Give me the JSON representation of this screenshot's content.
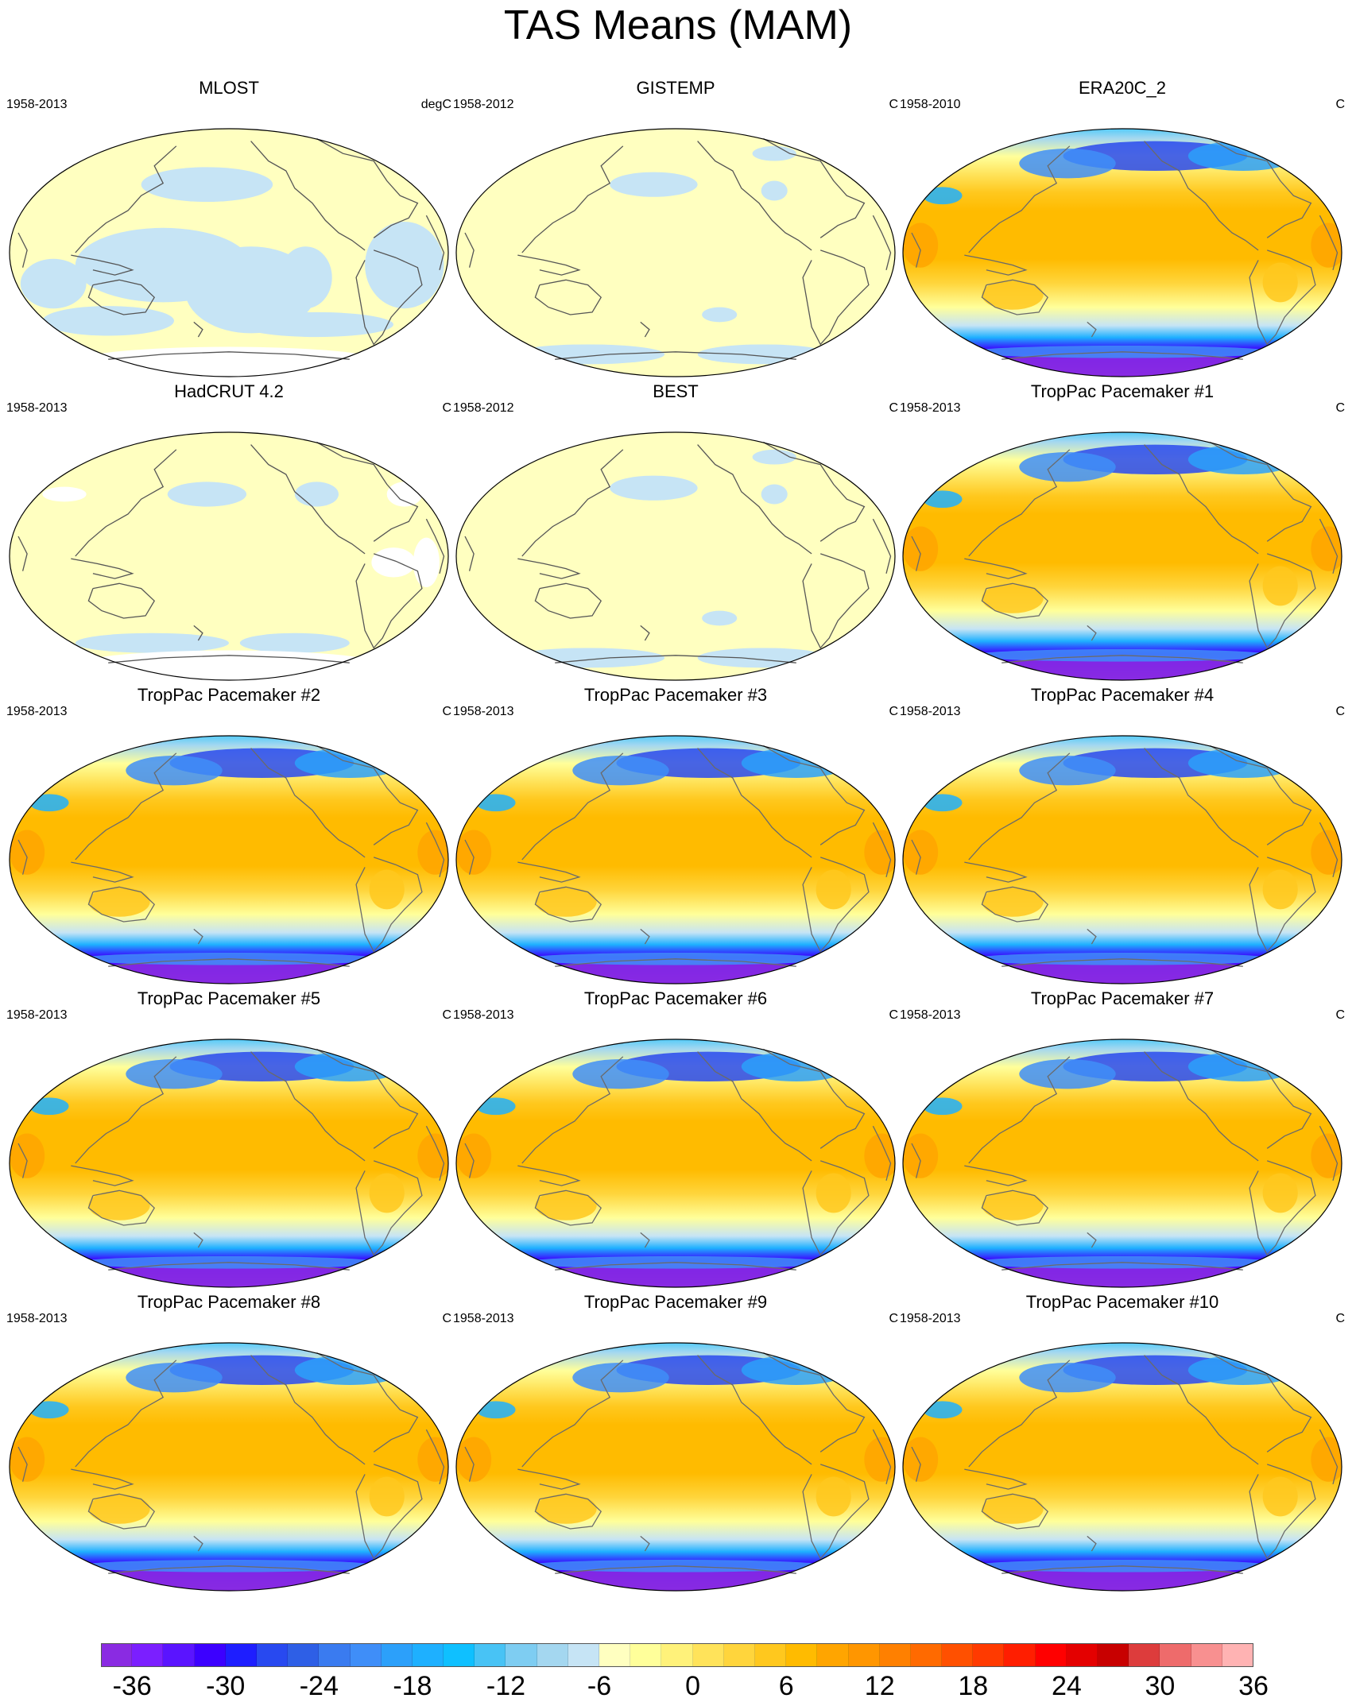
{
  "title": "TAS Means (MAM)",
  "panels": [
    {
      "title": "MLOST",
      "period": "1958-2013",
      "unit": "degC",
      "style": "obs_sparse"
    },
    {
      "title": "GISTEMP",
      "period": "1958-2012",
      "unit": "C",
      "style": "obs"
    },
    {
      "title": "ERA20C_2",
      "period": "1958-2010",
      "unit": "C",
      "style": "model"
    },
    {
      "title": "HadCRUT 4.2",
      "period": "1958-2013",
      "unit": "C",
      "style": "obs_gaps"
    },
    {
      "title": "BEST",
      "period": "1958-2012",
      "unit": "C",
      "style": "obs"
    },
    {
      "title": "TropPac Pacemaker #1",
      "period": "1958-2013",
      "unit": "C",
      "style": "model"
    },
    {
      "title": "TropPac Pacemaker #2",
      "period": "1958-2013",
      "unit": "C",
      "style": "model"
    },
    {
      "title": "TropPac Pacemaker #3",
      "period": "1958-2013",
      "unit": "C",
      "style": "model"
    },
    {
      "title": "TropPac Pacemaker #4",
      "period": "1958-2013",
      "unit": "C",
      "style": "model"
    },
    {
      "title": "TropPac Pacemaker #5",
      "period": "1958-2013",
      "unit": "C",
      "style": "model"
    },
    {
      "title": "TropPac Pacemaker #6",
      "period": "1958-2013",
      "unit": "C",
      "style": "model"
    },
    {
      "title": "TropPac Pacemaker #7",
      "period": "1958-2013",
      "unit": "C",
      "style": "model"
    },
    {
      "title": "TropPac Pacemaker #8",
      "period": "1958-2013",
      "unit": "C",
      "style": "model"
    },
    {
      "title": "TropPac Pacemaker #9",
      "period": "1958-2013",
      "unit": "C",
      "style": "model"
    },
    {
      "title": "TropPac Pacemaker #10",
      "period": "1958-2013",
      "unit": "C",
      "style": "model"
    }
  ],
  "colorbar": {
    "labels": [
      "-36",
      "-30",
      "-24",
      "-18",
      "-12",
      "-6",
      "0",
      "6",
      "12",
      "18",
      "24",
      "30",
      "36"
    ],
    "colors": [
      "#8a2be2",
      "#7b1fff",
      "#5a14ff",
      "#3c00ff",
      "#1e1eff",
      "#2849f0",
      "#2e5fe6",
      "#3a7bf0",
      "#3f8ef8",
      "#2ca0fa",
      "#1eb0ff",
      "#0fc0ff",
      "#48c3f5",
      "#7ecdf2",
      "#a4d7f0",
      "#c6e4f5",
      "#ffffc0",
      "#ffff9a",
      "#fff27a",
      "#ffe35a",
      "#ffd53c",
      "#ffc81e",
      "#ffbb00",
      "#ffa500",
      "#ff9600",
      "#ff8000",
      "#ff6a00",
      "#ff5000",
      "#ff3a00",
      "#ff1e00",
      "#ff0000",
      "#e40000",
      "#c80000",
      "#dd3c3c",
      "#ee6b6b",
      "#f89090",
      "#ffb3b3"
    ]
  }
}
